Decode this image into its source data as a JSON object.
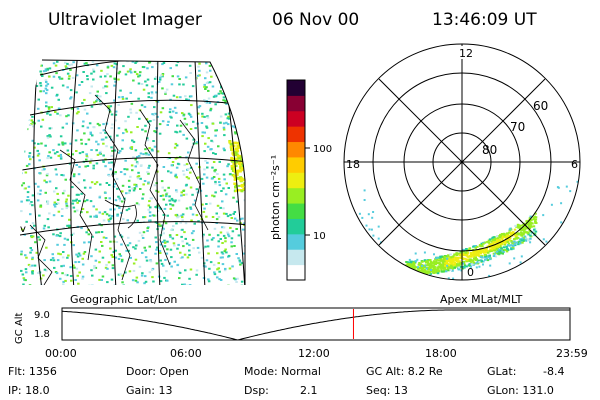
{
  "header": {
    "title": "Ultraviolet Imager",
    "date": "06 Nov 00",
    "time": "13:46:09 UT"
  },
  "geo_panel": {
    "label": "Geographic Lat/Lon",
    "edge_mark": "v"
  },
  "polar_panel": {
    "label": "Apex MLat/MLT",
    "mlt_labels": {
      "top": "12",
      "left": "18",
      "right": "6",
      "bottom": "0"
    },
    "lat_labels": [
      "80",
      "70",
      "60"
    ]
  },
  "colorbar": {
    "axis_label": "photon cm⁻²s⁻¹",
    "ticks": [
      "100",
      "10"
    ],
    "colors": [
      "#ffffff",
      "#c6e8ee",
      "#55ccdd",
      "#22cc99",
      "#44dd44",
      "#99ee22",
      "#eeee11",
      "#ffcc00",
      "#ff8800",
      "#ee3300",
      "#cc0022",
      "#880033",
      "#220033"
    ]
  },
  "orbit_plot": {
    "ylabel": "GC Alt",
    "yticks": [
      "9.0",
      "1.8"
    ],
    "xticks": [
      "00:00",
      "06:00",
      "12:00",
      "18:00",
      "23:59"
    ],
    "current_time_hours": 13.77,
    "marker_color": "#ff0000"
  },
  "footer": {
    "row1": {
      "flt": "Flt: 1356",
      "door": "Door: Open",
      "mode": "Mode: Normal",
      "gcalt": "GC Alt: 8.2 Re",
      "glat": "GLat:",
      "glat_val": "-8.4"
    },
    "row2": {
      "ip": "IP: 18.0",
      "gain": "Gain: 13",
      "dsp": "Dsp:",
      "dsp_val": "2.1",
      "seq": "Seq: 13",
      "glon": "GLon: 131.0"
    }
  }
}
